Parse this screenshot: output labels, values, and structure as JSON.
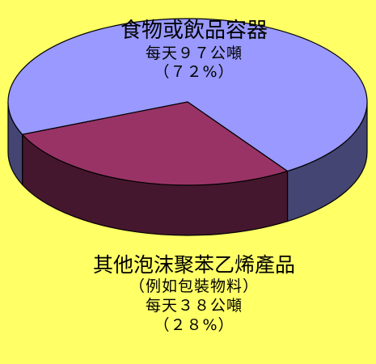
{
  "chart_data": {
    "type": "pie",
    "style": "3d",
    "slices": [
      {
        "label": "食物或飲品容器",
        "amount": "每天９７公噸",
        "percent_text": "（７２%）",
        "value": 72,
        "color": "#9999ff"
      },
      {
        "label": "其他泡沫聚苯乙烯產品",
        "note": "（例如包裝物料）",
        "amount": "每天３８公噸",
        "percent_text": "（２８%）",
        "value": 28,
        "color": "#993366"
      }
    ]
  },
  "colors": {
    "background": "#ffff66"
  }
}
